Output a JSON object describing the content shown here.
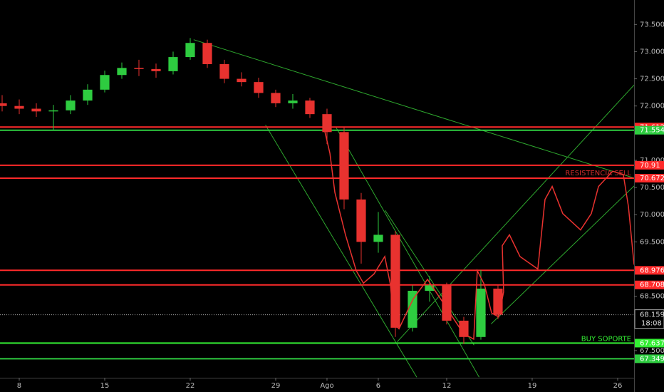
{
  "chart_data": {
    "type": "candlestick",
    "up_color": "#2ecc40",
    "down_color": "#e8322f",
    "xlim": [
      -1.125,
      35.96
    ],
    "ylim": [
      67.0,
      73.95
    ],
    "xticks": [
      {
        "value": 0,
        "label": "8"
      },
      {
        "value": 5,
        "label": "15"
      },
      {
        "value": 10,
        "label": "22"
      },
      {
        "value": 15,
        "label": "29"
      },
      {
        "value": 18,
        "label": "Ago"
      },
      {
        "value": 21,
        "label": "6"
      },
      {
        "value": 25,
        "label": "12"
      },
      {
        "value": 30,
        "label": "19"
      },
      {
        "value": 35,
        "label": "26"
      }
    ],
    "yticks": [
      {
        "value": 73.5,
        "label": "73.500"
      },
      {
        "value": 73.0,
        "label": "73.000"
      },
      {
        "value": 72.5,
        "label": "72.500"
      },
      {
        "value": 72.0,
        "label": "72.000"
      },
      {
        "value": 71.0,
        "label": "71.000"
      },
      {
        "value": 70.5,
        "label": "70.500"
      },
      {
        "value": 70.0,
        "label": "70.000"
      },
      {
        "value": 69.5,
        "label": "69.500"
      },
      {
        "value": 68.5,
        "label": "68.500"
      },
      {
        "value": 67.5,
        "label": "67.500"
      }
    ],
    "x": [
      -1,
      0,
      1,
      2,
      3,
      4,
      5,
      6,
      7,
      8,
      9,
      10,
      11,
      12,
      13,
      14,
      15,
      16,
      17,
      18,
      19,
      20,
      21,
      22,
      23,
      24,
      25,
      26,
      27,
      28
    ],
    "open": [
      72.05,
      72.0,
      71.95,
      71.9,
      71.92,
      72.1,
      72.3,
      72.57,
      72.7,
      72.68,
      72.64,
      72.9,
      73.16,
      72.77,
      72.5,
      72.44,
      72.24,
      72.05,
      72.1,
      71.85,
      71.52,
      70.28,
      69.5,
      69.63,
      67.92,
      68.6,
      68.7,
      68.05,
      67.75,
      68.64
    ],
    "high": [
      72.2,
      72.12,
      72.05,
      72.02,
      72.2,
      72.4,
      72.65,
      72.8,
      72.85,
      72.78,
      73.0,
      73.25,
      73.22,
      72.85,
      72.62,
      72.52,
      72.3,
      72.22,
      72.15,
      71.95,
      71.62,
      70.4,
      70.05,
      69.7,
      68.7,
      68.87,
      68.75,
      68.12,
      68.98,
      68.7
    ],
    "low": [
      71.9,
      71.85,
      71.8,
      71.55,
      71.85,
      72.02,
      72.25,
      72.5,
      72.55,
      72.52,
      72.58,
      72.85,
      72.7,
      72.42,
      72.36,
      72.15,
      71.98,
      71.95,
      71.78,
      71.3,
      70.1,
      69.1,
      69.3,
      67.75,
      67.85,
      68.4,
      67.98,
      67.62,
      67.7,
      68.08
    ],
    "close": [
      72.0,
      71.95,
      71.9,
      71.92,
      72.1,
      72.3,
      72.57,
      72.7,
      72.68,
      72.64,
      72.9,
      73.16,
      72.77,
      72.5,
      72.44,
      72.24,
      72.05,
      72.1,
      71.85,
      71.52,
      70.28,
      69.5,
      69.63,
      67.92,
      68.6,
      68.7,
      68.05,
      67.75,
      68.64,
      68.16
    ],
    "levels": [
      {
        "price": 71.612,
        "color": "#ff2a2a"
      },
      {
        "price": 71.554,
        "color": "#2ecc40"
      },
      {
        "price": 70.91,
        "color": "#ff2a2a"
      },
      {
        "price": 70.672,
        "color": "#ff2a2a"
      },
      {
        "price": 68.976,
        "color": "#ff2a2a"
      },
      {
        "price": 68.708,
        "color": "#ff2a2a"
      },
      {
        "price": 67.637,
        "color": "#33ee33"
      },
      {
        "price": 67.349,
        "color": "#2ecc40"
      }
    ],
    "last_price": 68.159,
    "countdown": "18:08",
    "annotations": [
      {
        "text": "RESISTENCIA SELL",
        "color": "#d22b2b"
      },
      {
        "text": "BUY SOPORTE",
        "color": "#33ee33"
      }
    ],
    "trendlines": [
      {
        "color": "#2ea82e",
        "x": [
          10.2,
          36
        ],
        "y": [
          73.22,
          70.67
        ]
      },
      {
        "color": "#2ea82e",
        "x": [
          14.4,
          23.25
        ],
        "y": [
          71.65,
          67.01
        ]
      },
      {
        "color": "#2ea82e",
        "x": [
          18.5,
          26.9
        ],
        "y": [
          71.62,
          67.01
        ]
      },
      {
        "color": "#2ea82e",
        "x": [
          21.4,
          26.6
        ],
        "y": [
          70.08,
          67.6
        ]
      },
      {
        "color": "#2ea82e",
        "x": [
          22.1,
          36
        ],
        "y": [
          67.66,
          72.4
        ]
      },
      {
        "color": "#2ea82e",
        "x": [
          27.6,
          36
        ],
        "y": [
          67.99,
          70.54
        ]
      }
    ],
    "forecast": {
      "color": "#e8322f",
      "x": [
        17.83,
        18.17,
        18.46,
        19.08,
        19.71,
        20.13,
        20.75,
        21.38,
        21.71,
        21.92,
        22.21,
        23.04,
        23.88,
        24.92,
        25.96,
        26.58,
        26.79,
        27.21,
        27.63,
        28.04,
        28.33,
        28.25,
        28.67,
        29.29,
        30.33,
        30.75,
        31.17,
        31.79,
        32.83,
        33.46,
        33.88,
        34.71,
        35.33,
        35.63,
        35.96
      ],
      "y": [
        71.59,
        71.13,
        70.41,
        69.63,
        68.97,
        68.74,
        68.91,
        69.23,
        68.71,
        67.99,
        67.9,
        68.45,
        68.81,
        68.32,
        67.82,
        67.71,
        68.97,
        68.71,
        68.19,
        68.12,
        68.58,
        69.43,
        69.63,
        69.23,
        69.0,
        70.28,
        70.52,
        70.02,
        69.72,
        70.02,
        70.52,
        70.8,
        70.74,
        70.15,
        69.08
      ]
    }
  }
}
